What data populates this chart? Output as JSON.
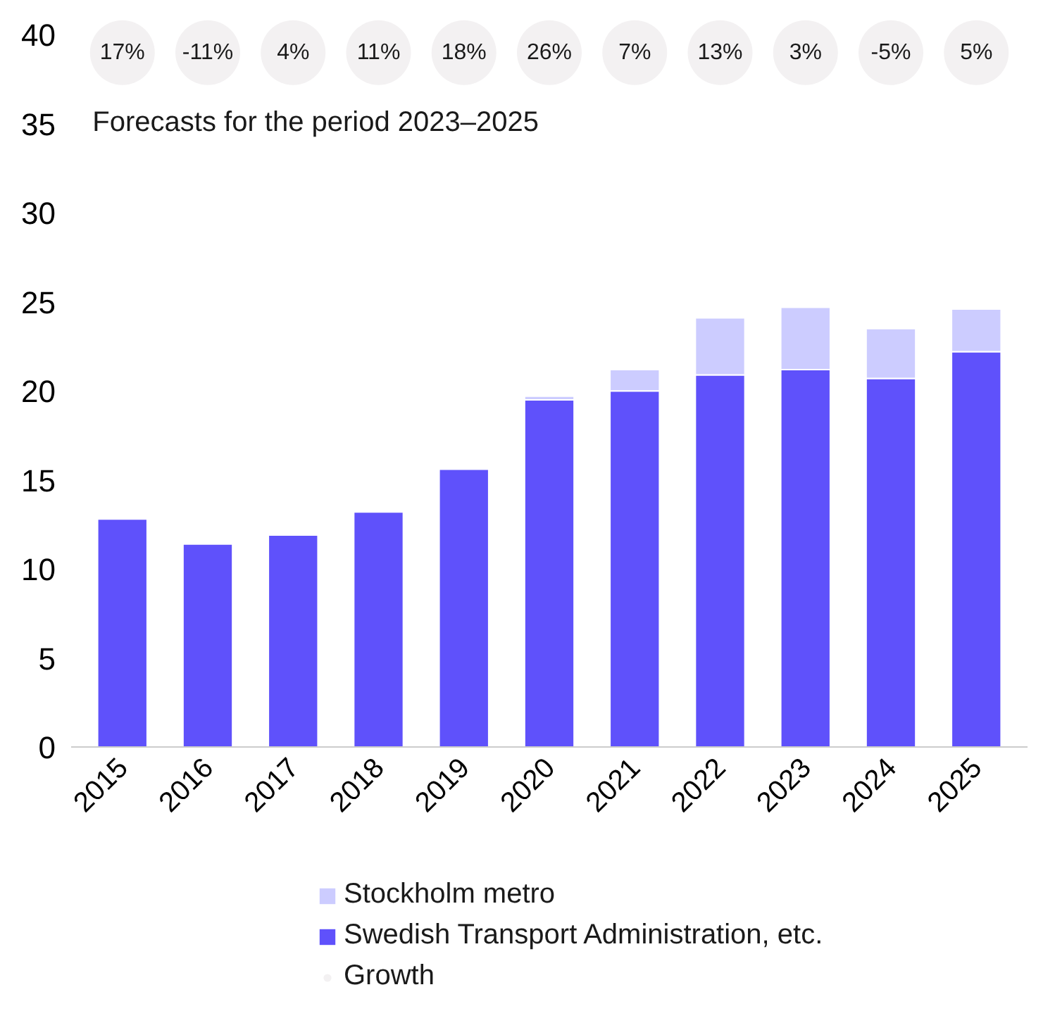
{
  "chart_data": {
    "type": "bar",
    "stacked": true,
    "categories": [
      "2015",
      "2016",
      "2017",
      "2018",
      "2019",
      "2020",
      "2021",
      "2022",
      "2023",
      "2024",
      "2025"
    ],
    "series": [
      {
        "name": "Swedish Transport Administration, etc.",
        "color": "#5f51fb",
        "values": [
          12.8,
          11.4,
          11.9,
          13.2,
          15.6,
          19.5,
          20.0,
          20.9,
          21.2,
          20.7,
          22.2
        ]
      },
      {
        "name": "Stockholm metro",
        "color": "#ccccff",
        "values": [
          null,
          null,
          null,
          null,
          null,
          0.2,
          1.2,
          3.2,
          3.5,
          2.8,
          2.4
        ]
      },
      {
        "name": "Growth",
        "type": "scatter",
        "color": "#f3f1f2",
        "marker": "circle",
        "values": [
          39,
          39,
          39,
          39,
          39,
          39,
          39,
          39,
          39,
          39,
          39
        ]
      }
    ],
    "ylim": [
      0,
      40
    ],
    "yticks": [
      0,
      5,
      10,
      15,
      20,
      25,
      30,
      35,
      40
    ],
    "annotations": [
      {
        "text": "17%",
        "x": "2015",
        "y": 39
      },
      {
        "text": "-11%",
        "x": "2016",
        "y": 39
      },
      {
        "text": "4%",
        "x": "2017",
        "y": 39
      },
      {
        "text": "11%",
        "x": "2018",
        "y": 39
      },
      {
        "text": "18%",
        "x": "2019",
        "y": 39
      },
      {
        "text": "26%",
        "x": "2020",
        "y": 39
      },
      {
        "text": "7%",
        "x": "2021",
        "y": 39
      },
      {
        "text": "13%",
        "x": "2022",
        "y": 39
      },
      {
        "text": "3%",
        "x": "2023",
        "y": 39
      },
      {
        "text": "-5%",
        "x": "2024",
        "y": 39
      },
      {
        "text": "5%",
        "x": "2025",
        "y": 39
      },
      "Forecasts for the period 2023–2025"
    ],
    "grid": false,
    "legend": "bottom"
  }
}
